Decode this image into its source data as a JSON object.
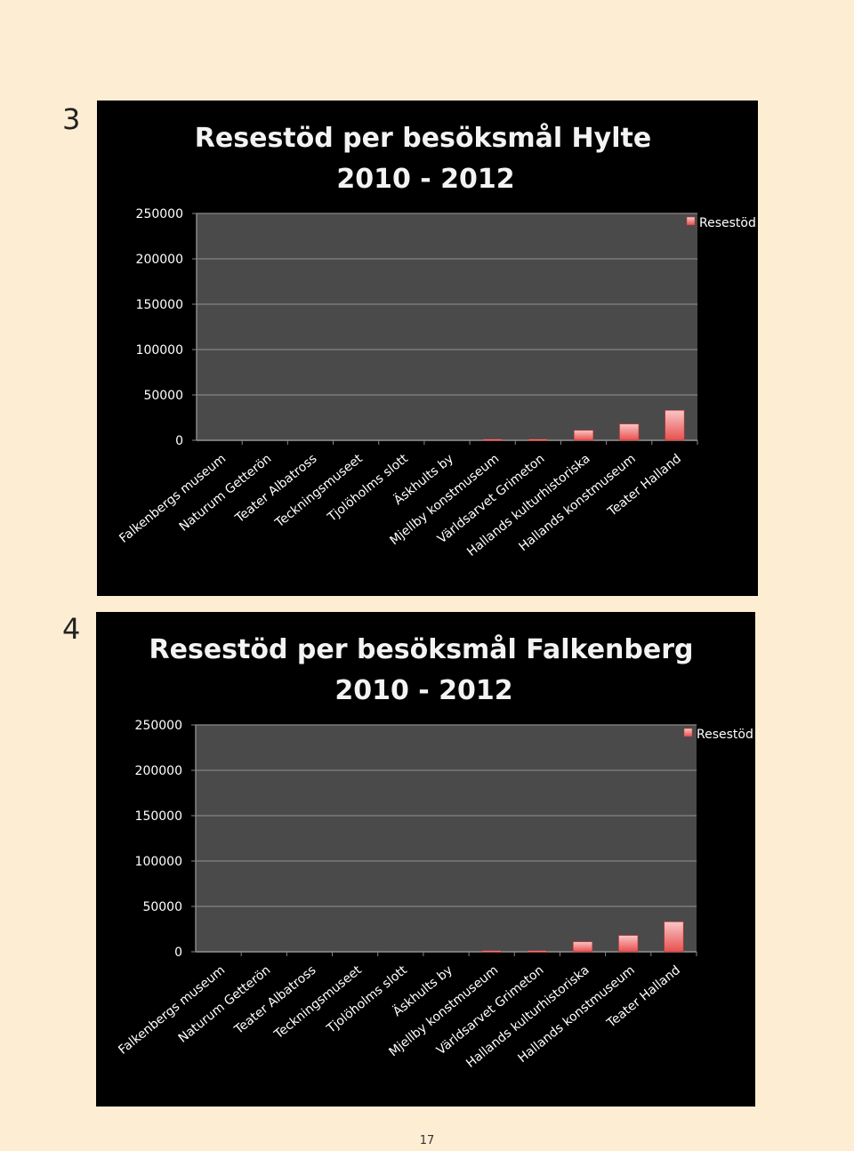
{
  "figures": [
    {
      "number": "3"
    },
    {
      "number": "4"
    }
  ],
  "page_number": "17",
  "colors": {
    "page_background": "#fdedd3",
    "chart_background": "#000000",
    "plot_area": "#4a4a4a",
    "gridline": "#7a7a7a",
    "bar_top": "#f9c6c6",
    "bar_bottom": "#e8504f",
    "text": "#ffffff",
    "title_text": "#f3f3f3"
  },
  "chart_data": [
    {
      "type": "bar",
      "title": "Resestöd per besöksmål Hylte",
      "subtitle": "2010 - 2012",
      "categories": [
        "Falkenbergs museum",
        "Naturum Getterön",
        "Teater Albatross",
        "Teckningsmuseet",
        "Tjolöholms slott",
        "Äskhults by",
        "Mjellby konstmuseum",
        "Världsarvet Grimeton",
        "Hallands kulturhistoriska",
        "Hallands konstmuseum",
        "Teater Halland"
      ],
      "series": [
        {
          "name": "Resestöd",
          "values": [
            0,
            0,
            0,
            0,
            0,
            0,
            1000,
            1000,
            11000,
            18000,
            33000
          ]
        }
      ],
      "yticks": [
        "250000",
        "200000",
        "150000",
        "100000",
        "50000",
        "0"
      ],
      "ylim": [
        0,
        250000
      ],
      "legend": "top-right",
      "grid": true
    },
    {
      "type": "bar",
      "title": "Resestöd per besöksmål Falkenberg",
      "subtitle": "2010 - 2012",
      "categories": [
        "Falkenbergs museum",
        "Naturum Getterön",
        "Teater Albatross",
        "Teckningsmuseet",
        "Tjolöholms slott",
        "Äskhults by",
        "Mjellby konstmuseum",
        "Världsarvet Grimeton",
        "Hallands kulturhistoriska",
        "Hallands konstmuseum",
        "Teater Halland"
      ],
      "series": [
        {
          "name": "Resestöd",
          "values": [
            0,
            0,
            0,
            0,
            0,
            0,
            1000,
            1000,
            11000,
            18000,
            33000
          ]
        }
      ],
      "yticks": [
        "250000",
        "200000",
        "150000",
        "100000",
        "50000",
        "0"
      ],
      "ylim": [
        0,
        250000
      ],
      "legend": "top-right",
      "grid": true
    }
  ]
}
